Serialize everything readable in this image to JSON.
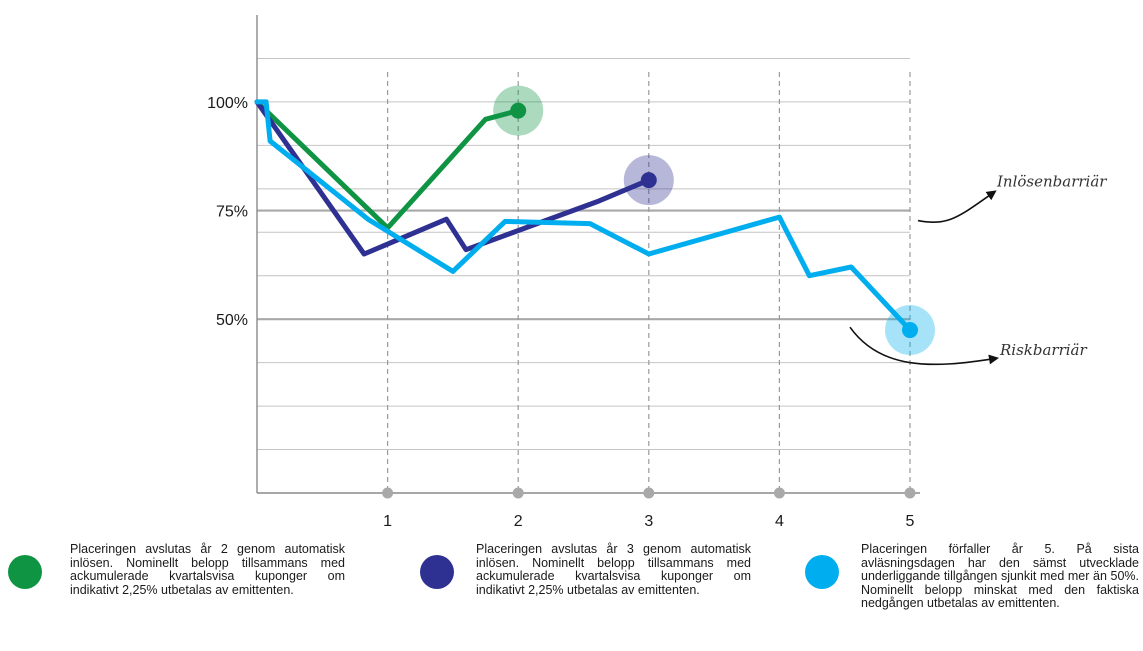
{
  "chart_data": {
    "type": "line",
    "title": "",
    "xlabel": "",
    "ylabel": "",
    "x_ticks": [
      "1",
      "2",
      "3",
      "4",
      "5"
    ],
    "y_ticks": [
      {
        "value": 100,
        "label": "100%"
      },
      {
        "value": 75,
        "label": "75%"
      },
      {
        "value": 50,
        "label": "50%"
      }
    ],
    "xlim": [
      0,
      5.05
    ],
    "ylim": [
      10,
      120
    ],
    "barriers": [
      {
        "value": 75,
        "label": "Inlösenbarriär"
      },
      {
        "value": 50,
        "label": "Riskbarriär"
      }
    ],
    "series": [
      {
        "color": "#0f9444",
        "points": [
          [
            0,
            100
          ],
          [
            1,
            71
          ],
          [
            1.75,
            96
          ],
          [
            2,
            98
          ]
        ],
        "end": [
          2,
          98
        ]
      },
      {
        "color": "#2e3192",
        "points": [
          [
            0,
            100
          ],
          [
            0.82,
            65
          ],
          [
            1.45,
            73
          ],
          [
            1.6,
            66
          ],
          [
            2.6,
            77
          ],
          [
            3,
            82
          ]
        ],
        "end": [
          3,
          82
        ]
      },
      {
        "color": "#00aeef",
        "points": [
          [
            0,
            100
          ],
          [
            0.07,
            100
          ],
          [
            0.1,
            91
          ],
          [
            0.85,
            73
          ],
          [
            1.5,
            61
          ],
          [
            1.9,
            72.5
          ],
          [
            2.55,
            72
          ],
          [
            3,
            65
          ],
          [
            4,
            73.5
          ],
          [
            4.23,
            60
          ],
          [
            4.55,
            62
          ],
          [
            5,
            47.5
          ]
        ],
        "end": [
          5,
          47.5
        ]
      }
    ]
  },
  "legend": [
    {
      "color": "#0f9444",
      "text": "Placeringen avslutas år 2 genom automatisk inlösen. Nominellt belopp tillsammans med ackumulerade kvartalsvisa kuponger om indikativt 2,25% utbetalas av emittenten."
    },
    {
      "color": "#2e3192",
      "text": "Placeringen avslutas år 3 genom automatisk inlösen. Nominellt belopp tillsammans med ackumulerade kvartalsvisa kuponger om indikativt 2,25% utbetalas av emittenten."
    },
    {
      "color": "#00aeef",
      "text": "Placeringen förfaller år 5. På sista avläsningsdagen har den sämst utvecklade underliggande tillgången sjunkit med mer än 50%. Nominellt belopp minskat med den faktiska nedgången utbetalas av emittenten."
    }
  ]
}
